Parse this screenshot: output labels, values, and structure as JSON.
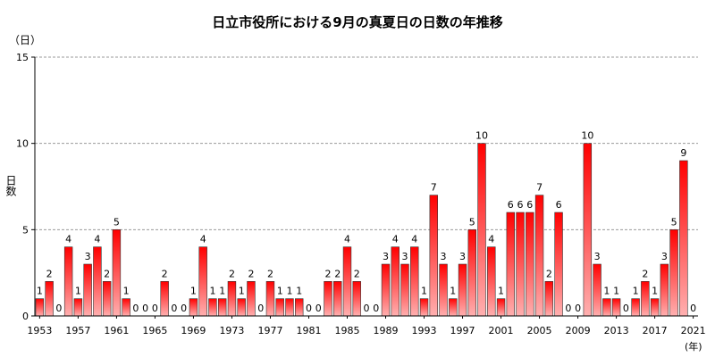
{
  "chart_data": {
    "type": "bar",
    "title": "日立市役所における9月の真夏日の日数の年推移",
    "ylabel": "日数",
    "y_unit": "（日）",
    "x_unit": "(年)",
    "ylim": [
      0,
      15
    ],
    "yticks": [
      0,
      5,
      10,
      15
    ],
    "grid": "horizontal-dashed",
    "bar_color_top": "#ff0000",
    "bar_color_bottom": "#ffb0b0",
    "x_tick_labels": [
      "1953",
      "1957",
      "1961",
      "1965",
      "1969",
      "1973",
      "1977",
      "1981",
      "1985",
      "1989",
      "1993",
      "1997",
      "2001",
      "2005",
      "2009",
      "2013",
      "2017",
      "2021"
    ],
    "x": [
      1953,
      1954,
      1955,
      1956,
      1957,
      1958,
      1959,
      1960,
      1961,
      1962,
      1963,
      1964,
      1965,
      1966,
      1967,
      1968,
      1969,
      1970,
      1971,
      1972,
      1973,
      1974,
      1975,
      1976,
      1977,
      1978,
      1979,
      1980,
      1981,
      1982,
      1983,
      1984,
      1985,
      1986,
      1987,
      1988,
      1989,
      1990,
      1991,
      1992,
      1993,
      1994,
      1995,
      1996,
      1997,
      1998,
      1999,
      2000,
      2001,
      2002,
      2003,
      2004,
      2005,
      2006,
      2007,
      2008,
      2009,
      2010,
      2011,
      2012,
      2013,
      2014,
      2015,
      2016,
      2017,
      2018,
      2019,
      2020,
      2021
    ],
    "values": [
      1,
      2,
      0,
      4,
      1,
      3,
      4,
      2,
      5,
      1,
      0,
      0,
      0,
      2,
      0,
      0,
      1,
      4,
      1,
      1,
      2,
      1,
      2,
      0,
      2,
      1,
      1,
      1,
      0,
      0,
      2,
      2,
      4,
      2,
      0,
      0,
      3,
      4,
      3,
      4,
      1,
      7,
      3,
      1,
      3,
      5,
      10,
      4,
      1,
      6,
      6,
      6,
      7,
      2,
      6,
      0,
      0,
      10,
      3,
      1,
      1,
      0,
      1,
      2,
      1,
      3,
      5,
      9,
      0
    ]
  }
}
